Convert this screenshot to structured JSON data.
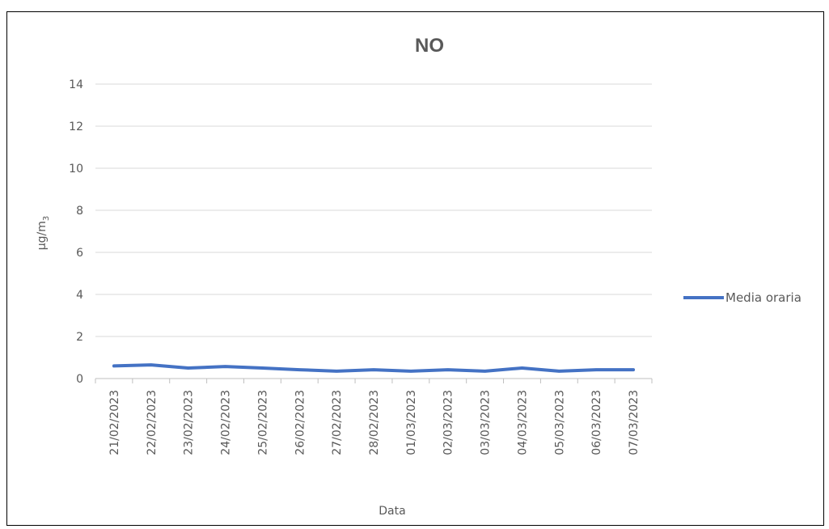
{
  "chart_data": {
    "type": "line",
    "title": "NO",
    "xlabel": "Data",
    "ylabel": "µg/m3",
    "ylim": [
      0,
      14
    ],
    "yticks": [
      0,
      2,
      4,
      6,
      8,
      10,
      12,
      14
    ],
    "y_tick_labels": [
      "0",
      "2",
      "4",
      "6",
      "8",
      "10",
      "12",
      "14"
    ],
    "grid": true,
    "legend_position": "right",
    "categories": [
      "21/02/2023",
      "22/02/2023",
      "23/02/2023",
      "24/02/2023",
      "25/02/2023",
      "26/02/2023",
      "27/02/2023",
      "28/02/2023",
      "01/03/2023",
      "02/03/2023",
      "03/03/2023",
      "04/03/2023",
      "05/03/2023",
      "06/03/2023",
      "07/03/2023"
    ],
    "series": [
      {
        "name": "Media oraria",
        "color": "#4472C4",
        "values": [
          0.6,
          0.65,
          0.5,
          0.57,
          0.5,
          0.42,
          0.35,
          0.42,
          0.35,
          0.42,
          0.35,
          0.5,
          0.35,
          0.42,
          0.42
        ]
      }
    ]
  }
}
